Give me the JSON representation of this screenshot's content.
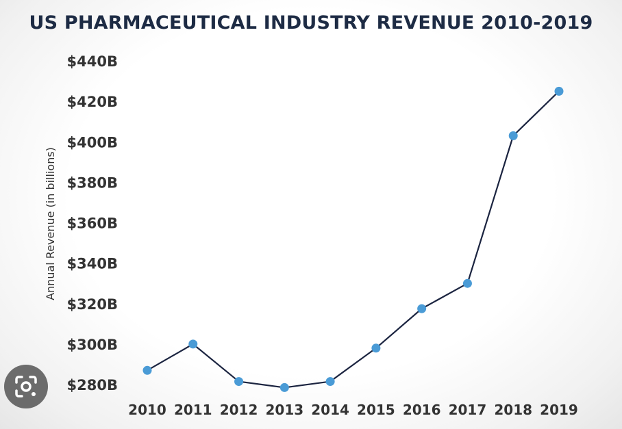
{
  "chart_data": {
    "type": "line",
    "title": "US PHARMACEUTICAL INDUSTRY REVENUE 2010-2019",
    "xlabel": "",
    "ylabel": "Annual Revenue (in billions)",
    "categories": [
      "2010",
      "2011",
      "2012",
      "2013",
      "2014",
      "2015",
      "2016",
      "2017",
      "2018",
      "2019"
    ],
    "values": [
      287,
      300,
      281.5,
      278.5,
      281.5,
      298,
      317.5,
      330,
      403,
      425
    ],
    "ylim": [
      280,
      440
    ],
    "yticks": [
      280,
      300,
      320,
      340,
      360,
      380,
      400,
      420,
      440
    ],
    "yticklabels": [
      "$280B",
      "$300B",
      "$320B",
      "$340B",
      "$360B",
      "$380B",
      "$400B",
      "$420B",
      "$440B"
    ],
    "grid": false,
    "legend": "none",
    "colors": {
      "line": "#1b2440",
      "marker": "#4a9bd6",
      "title": "#1d2b44",
      "text": "#333333"
    }
  },
  "overlay": {
    "lens_icon": "camera-lens-icon"
  }
}
